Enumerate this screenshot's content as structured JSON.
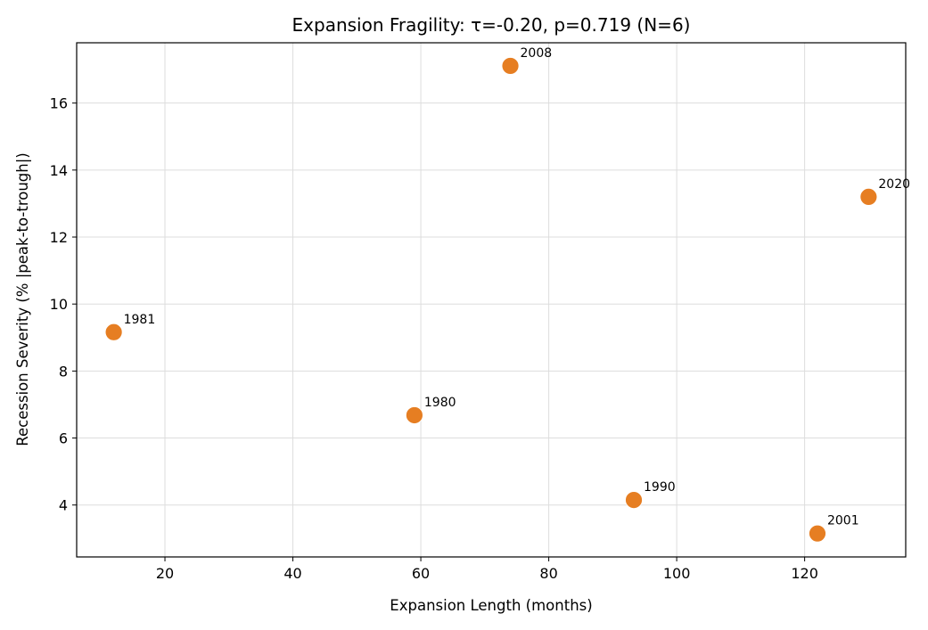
{
  "chart_data": {
    "type": "scatter",
    "title": "Expansion Fragility: τ=-0.20, p=0.719 (N=6)",
    "xlabel": "Expansion Length (months)",
    "ylabel": "Recession Severity (% |peak-to-trough|)",
    "xlim": [
      6.2,
      135.8
    ],
    "ylim": [
      2.45,
      17.8
    ],
    "xticks": [
      20,
      40,
      60,
      80,
      100,
      120
    ],
    "yticks": [
      4,
      6,
      8,
      10,
      12,
      14,
      16
    ],
    "grid": true,
    "marker_color": "#e67e22",
    "points": [
      {
        "label": "1981",
        "x": 12,
        "y": 9.16
      },
      {
        "label": "1980",
        "x": 59,
        "y": 6.68
      },
      {
        "label": "2008",
        "x": 74,
        "y": 17.11
      },
      {
        "label": "1990",
        "x": 93.3,
        "y": 4.15
      },
      {
        "label": "2001",
        "x": 122,
        "y": 3.15
      },
      {
        "label": "2020",
        "x": 130,
        "y": 13.2
      }
    ]
  }
}
